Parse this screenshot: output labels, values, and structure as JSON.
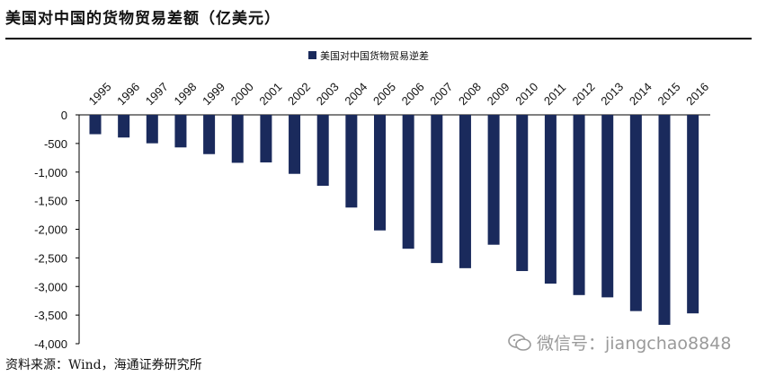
{
  "title": "美国对中国的货物贸易差额（亿美元）",
  "source": "资料来源：Wind，海通证券研究所",
  "watermark": "微信号：jiangchao8848",
  "colors": {
    "bar": "#1a2a5c",
    "axis": "#000000"
  },
  "chart_data": {
    "type": "bar",
    "title": "美国对中国的货物贸易差额（亿美元）",
    "legend": "美国对中国货物贸易逆差",
    "legend_position": "top-center",
    "categories": [
      "1995",
      "1996",
      "1997",
      "1998",
      "1999",
      "2000",
      "2001",
      "2002",
      "2003",
      "2004",
      "2005",
      "2006",
      "2007",
      "2008",
      "2009",
      "2010",
      "2011",
      "2012",
      "2013",
      "2014",
      "2015",
      "2016"
    ],
    "series": [
      {
        "name": "美国对中国货物贸易逆差",
        "values": [
          -338,
          -396,
          -497,
          -569,
          -686,
          -838,
          -831,
          -1031,
          -1240,
          -1620,
          -2020,
          -2340,
          -2590,
          -2680,
          -2270,
          -2730,
          -2950,
          -3150,
          -3190,
          -3430,
          -3670,
          -3470
        ]
      }
    ],
    "ylim": [
      -4000,
      0
    ],
    "yticks": [
      "0",
      "-500",
      "-1,000",
      "-1,500",
      "-2,000",
      "-2,500",
      "-3,000",
      "-3,500",
      "-4,000"
    ],
    "ytick_values": [
      0,
      -500,
      -1000,
      -1500,
      -2000,
      -2500,
      -3000,
      -3500,
      -4000
    ],
    "xlabel": "",
    "ylabel": "",
    "grid": false
  }
}
